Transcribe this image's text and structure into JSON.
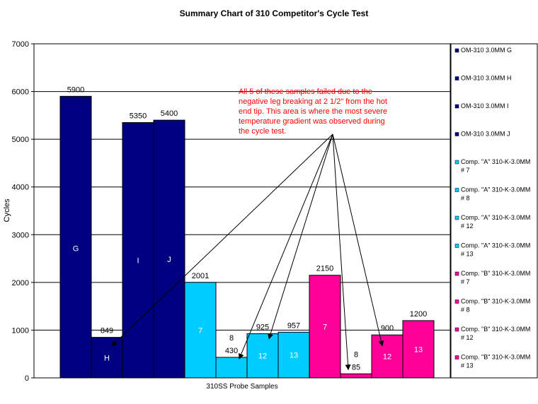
{
  "chart_data": {
    "type": "bar",
    "title": "Summary Chart of 310 Competitor's Cycle Test",
    "xlabel": "310SS  Probe Samples",
    "ylabel": "Cycles",
    "ylim": [
      0,
      7000
    ],
    "yticks": [
      "0",
      "1000",
      "2000",
      "3000",
      "4000",
      "5000",
      "6000",
      "7000"
    ],
    "grid": true,
    "legend_position": "right",
    "series": [
      {
        "name": "OM-310  3.0MM G",
        "color": "#000080",
        "value": 5900,
        "value_label": "5900",
        "bar_label": "G"
      },
      {
        "name": "OM-310  3.0MM H",
        "color": "#000080",
        "value": 849,
        "value_label": "849",
        "bar_label": "H"
      },
      {
        "name": "OM-310  3.0MM I",
        "color": "#000080",
        "value": 5350,
        "value_label": "5350",
        "bar_label": "I"
      },
      {
        "name": "OM-310  3.0MM J",
        "color": "#000080",
        "value": 5400,
        "value_label": "5400",
        "bar_label": "J"
      },
      {
        "name": "Comp.  \"A\"  310-K-3.0MM # 7",
        "color": "#00ccff",
        "value": 2001,
        "value_label": "2001",
        "bar_label": "7"
      },
      {
        "name": "Comp.  \"A\"  310-K-3.0MM # 8",
        "color": "#00ccff",
        "value": 430,
        "value_label": "430",
        "bar_label": "8"
      },
      {
        "name": "Comp.  \"A\"  310-K-3.0MM # 12",
        "color": "#00ccff",
        "value": 925,
        "value_label": "925",
        "bar_label": "12"
      },
      {
        "name": "Comp.  \"A\"  310-K-3.0MM # 13",
        "color": "#00ccff",
        "value": 957,
        "value_label": "957",
        "bar_label": "13"
      },
      {
        "name": "Comp.  \"B\"  310-K-3.0MM # 7",
        "color": "#ff0099",
        "value": 2150,
        "value_label": "2150",
        "bar_label": "7"
      },
      {
        "name": "Comp.  \"B\"  310-K-3.0MM # 8",
        "color": "#ff0099",
        "value": 85,
        "value_label": "85",
        "bar_label": "8"
      },
      {
        "name": "Comp.  \"B\"  310-K-3.0MM # 12",
        "color": "#ff0099",
        "value": 900,
        "value_label": "900",
        "bar_label": "12"
      },
      {
        "name": "Comp.  \"B\"  310-K-3.0MM # 13",
        "color": "#ff0099",
        "value": 1200,
        "value_label": "1200",
        "bar_label": "13"
      }
    ],
    "annotation": {
      "text_lines": [
        "All 5 of these samples failed due to the",
        "negative leg breaking at 2 1/2\" from the hot",
        "end tip.  This area is where the most severe",
        "temperature gradient was observed during",
        "the cycle test."
      ],
      "color": "#ff0000",
      "points_to": [
        "H",
        "8",
        "12",
        "8",
        "12"
      ],
      "arrow_targets": [
        {
          "bar_index": 1,
          "value": 849
        },
        {
          "bar_index": 5,
          "value": 430
        },
        {
          "bar_index": 6,
          "value": 850
        },
        {
          "bar_index": 9,
          "value": 85
        },
        {
          "bar_index": 10,
          "value": 850
        }
      ]
    }
  }
}
